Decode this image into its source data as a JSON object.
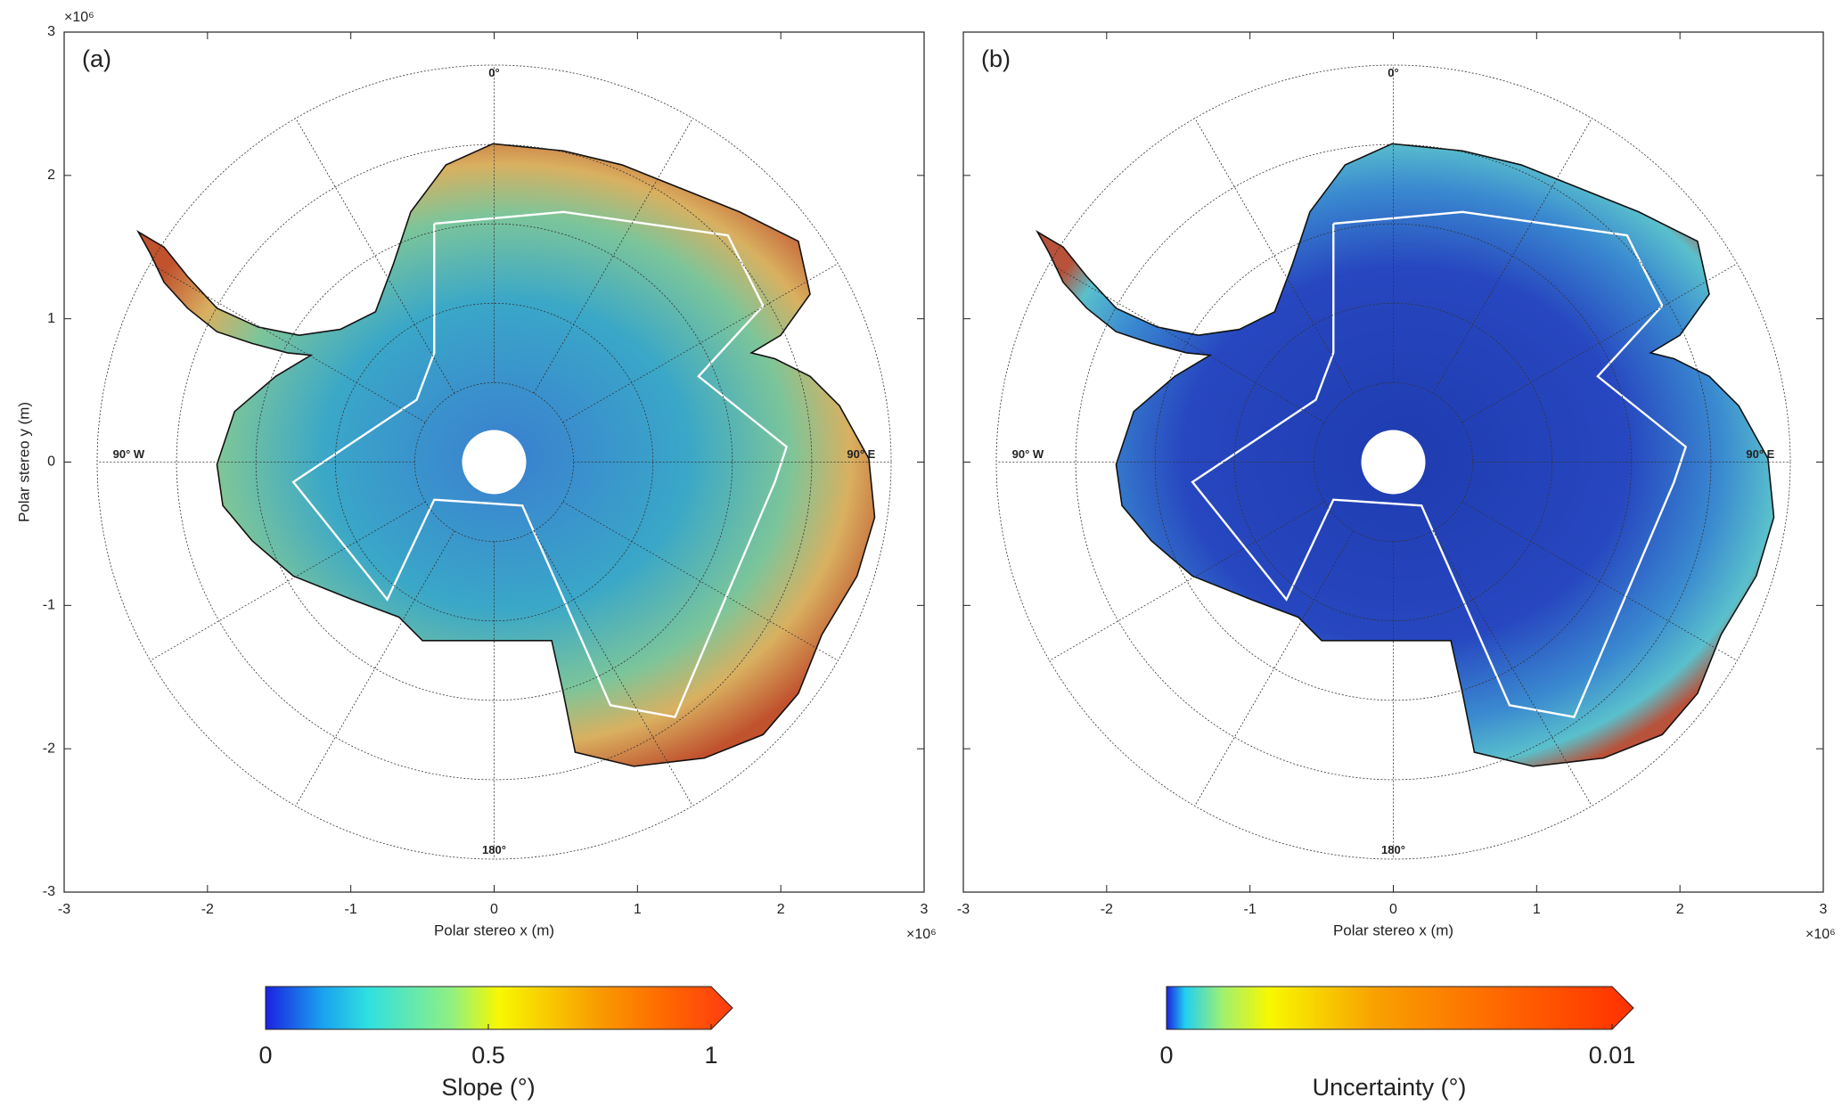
{
  "panels": [
    {
      "label": "(a)",
      "xlabel": "Polar stereo x (m)",
      "ylabel": "Polar stereo y (m)",
      "x_exponent": "×10⁶",
      "y_exponent": "×10⁶",
      "xlim": [
        -3,
        3
      ],
      "ylim": [
        -3,
        3
      ],
      "xticks": [
        -3,
        -2,
        -1,
        0,
        1,
        2,
        3
      ],
      "yticks": [
        -3,
        -2,
        -1,
        0,
        1,
        2,
        3
      ],
      "ytick_labels": true,
      "meridian_labels": [
        "0°",
        "90° E",
        "180°",
        "90° W"
      ],
      "colorbar": {
        "label": "Slope (°)",
        "lim": [
          0,
          1
        ],
        "ticks": [
          0,
          0.5,
          1
        ]
      }
    },
    {
      "label": "(b)",
      "xlabel": "Polar stereo x (m)",
      "x_exponent": "×10⁶",
      "xlim": [
        -3,
        3
      ],
      "ylim": [
        -3,
        3
      ],
      "xticks": [
        -3,
        -2,
        -1,
        0,
        1,
        2,
        3
      ],
      "yticks": [
        -3,
        -2,
        -1,
        0,
        1,
        2,
        3
      ],
      "ytick_labels": false,
      "meridian_labels": [
        "0°",
        "90° E",
        "180°",
        "90° W"
      ],
      "colorbar": {
        "label": "Uncertainty (°)",
        "lim": [
          0,
          0.01
        ],
        "ticks": [
          0,
          0.01
        ]
      }
    }
  ]
}
